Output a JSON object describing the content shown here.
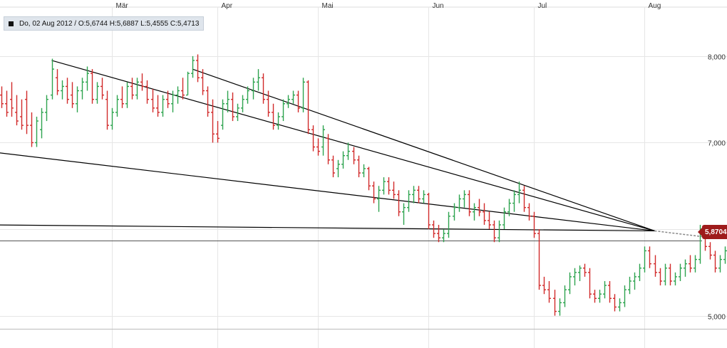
{
  "info": {
    "text": "Do, 02 Aug 2012 / O:5,6744  H:5,6887  L:5,4555  C:5,4713"
  },
  "last_price_label": "5,8704",
  "colors": {
    "up": "#2ea44f",
    "down": "#d12b2b",
    "trendline": "#000000",
    "grid": "#e6e6e6",
    "last_line": "#555555",
    "tag": "#9e1b1b",
    "info_bg": "#dfe5ec"
  },
  "chart_data": {
    "type": "ohlc-bar",
    "title": "",
    "xlabel": "",
    "ylabel": "",
    "months": [
      {
        "label": "Mär",
        "day": 22
      },
      {
        "label": "Apr",
        "day": 43
      },
      {
        "label": "Mai",
        "day": 63
      },
      {
        "label": "Jun",
        "day": 85
      },
      {
        "label": "Jul",
        "day": 106
      },
      {
        "label": "Aug",
        "day": 128
      }
    ],
    "yticks": [
      {
        "value": 8.0,
        "label": "8,000"
      },
      {
        "value": 7.0,
        "label": "7,000"
      },
      {
        "value": 6.0,
        "label": "6,000"
      },
      {
        "value": 5.0,
        "label": "5,000"
      }
    ],
    "ylim": [
      4.75,
      8.55
    ],
    "xlim": [
      0,
      135
    ],
    "last_value": 5.8704,
    "grid": true,
    "bars": [
      [
        7.55,
        7.65,
        7.4,
        7.45
      ],
      [
        7.45,
        7.6,
        7.3,
        7.35
      ],
      [
        7.5,
        7.7,
        7.3,
        7.4
      ],
      [
        7.35,
        7.55,
        7.2,
        7.25
      ],
      [
        7.3,
        7.5,
        7.15,
        7.2
      ],
      [
        7.5,
        7.6,
        7.1,
        7.2
      ],
      [
        7.2,
        7.35,
        6.95,
        7.0
      ],
      [
        7.0,
        7.3,
        6.95,
        7.25
      ],
      [
        7.15,
        7.4,
        7.05,
        7.35
      ],
      [
        7.35,
        7.55,
        7.25,
        7.5
      ],
      [
        7.55,
        7.97,
        7.5,
        7.85
      ],
      [
        7.75,
        7.85,
        7.55,
        7.6
      ],
      [
        7.6,
        7.72,
        7.5,
        7.65
      ],
      [
        7.65,
        7.75,
        7.45,
        7.5
      ],
      [
        7.55,
        7.7,
        7.4,
        7.45
      ],
      [
        7.45,
        7.65,
        7.35,
        7.6
      ],
      [
        7.6,
        7.75,
        7.5,
        7.7
      ],
      [
        7.7,
        7.88,
        7.6,
        7.8
      ],
      [
        7.8,
        7.85,
        7.45,
        7.5
      ],
      [
        7.5,
        7.7,
        7.45,
        7.65
      ],
      [
        7.65,
        7.75,
        7.5,
        7.55
      ],
      [
        7.5,
        7.6,
        7.15,
        7.2
      ],
      [
        7.2,
        7.4,
        7.15,
        7.35
      ],
      [
        7.35,
        7.55,
        7.3,
        7.5
      ],
      [
        7.5,
        7.65,
        7.4,
        7.45
      ],
      [
        7.45,
        7.7,
        7.4,
        7.65
      ],
      [
        7.65,
        7.75,
        7.5,
        7.55
      ],
      [
        7.55,
        7.75,
        7.5,
        7.7
      ],
      [
        7.7,
        7.8,
        7.6,
        7.65
      ],
      [
        7.65,
        7.72,
        7.45,
        7.5
      ],
      [
        7.5,
        7.62,
        7.35,
        7.4
      ],
      [
        7.4,
        7.55,
        7.3,
        7.35
      ],
      [
        7.35,
        7.55,
        7.3,
        7.5
      ],
      [
        7.5,
        7.6,
        7.4,
        7.45
      ],
      [
        7.45,
        7.6,
        7.35,
        7.55
      ],
      [
        7.55,
        7.65,
        7.45,
        7.6
      ],
      [
        7.6,
        7.75,
        7.5,
        7.55
      ],
      [
        7.55,
        7.82,
        7.55,
        7.8
      ],
      [
        7.8,
        8.0,
        7.75,
        7.95
      ],
      [
        7.95,
        8.02,
        7.7,
        7.75
      ],
      [
        7.75,
        7.85,
        7.55,
        7.6
      ],
      [
        7.6,
        7.65,
        7.3,
        7.35
      ],
      [
        7.35,
        7.5,
        7.0,
        7.1
      ],
      [
        7.1,
        7.25,
        7.0,
        7.05
      ],
      [
        7.2,
        7.5,
        7.15,
        7.45
      ],
      [
        7.45,
        7.6,
        7.35,
        7.5
      ],
      [
        7.5,
        7.58,
        7.25,
        7.3
      ],
      [
        7.3,
        7.45,
        7.25,
        7.4
      ],
      [
        7.4,
        7.55,
        7.35,
        7.5
      ],
      [
        7.5,
        7.65,
        7.45,
        7.6
      ],
      [
        7.6,
        7.75,
        7.5,
        7.7
      ],
      [
        7.7,
        7.85,
        7.6,
        7.75
      ],
      [
        7.75,
        7.8,
        7.45,
        7.5
      ],
      [
        7.5,
        7.6,
        7.3,
        7.35
      ],
      [
        7.35,
        7.45,
        7.15,
        7.2
      ],
      [
        7.2,
        7.35,
        7.15,
        7.3
      ],
      [
        7.3,
        7.5,
        7.25,
        7.45
      ],
      [
        7.45,
        7.55,
        7.4,
        7.5
      ],
      [
        7.5,
        7.6,
        7.45,
        7.55
      ],
      [
        7.55,
        7.6,
        7.35,
        7.4
      ],
      [
        7.4,
        7.75,
        7.35,
        7.7
      ],
      [
        7.7,
        7.72,
        7.1,
        7.15
      ],
      [
        7.15,
        7.2,
        6.9,
        6.95
      ],
      [
        6.95,
        7.05,
        6.85,
        6.9
      ],
      [
        6.95,
        7.2,
        6.85,
        7.15
      ],
      [
        7.05,
        7.1,
        6.75,
        6.8
      ],
      [
        6.8,
        6.85,
        6.6,
        6.65
      ],
      [
        6.7,
        6.8,
        6.6,
        6.75
      ],
      [
        6.75,
        6.9,
        6.7,
        6.85
      ],
      [
        6.85,
        7.0,
        6.8,
        6.9
      ],
      [
        6.9,
        6.95,
        6.75,
        6.8
      ],
      [
        6.8,
        6.85,
        6.6,
        6.65
      ],
      [
        6.65,
        6.75,
        6.6,
        6.7
      ],
      [
        6.7,
        6.72,
        6.45,
        6.5
      ],
      [
        6.5,
        6.55,
        6.3,
        6.35
      ],
      [
        6.35,
        6.5,
        6.2,
        6.45
      ],
      [
        6.45,
        6.6,
        6.4,
        6.55
      ],
      [
        6.55,
        6.6,
        6.4,
        6.45
      ],
      [
        6.45,
        6.55,
        6.35,
        6.4
      ],
      [
        6.4,
        6.45,
        6.15,
        6.2
      ],
      [
        6.2,
        6.3,
        6.05,
        6.25
      ],
      [
        6.25,
        6.45,
        6.2,
        6.4
      ],
      [
        6.4,
        6.5,
        6.3,
        6.45
      ],
      [
        6.45,
        6.5,
        6.3,
        6.35
      ],
      [
        6.35,
        6.45,
        6.3,
        6.4
      ],
      [
        6.4,
        6.42,
        6.0,
        6.05
      ],
      [
        6.05,
        6.1,
        5.9,
        5.95
      ],
      [
        5.95,
        6.05,
        5.85,
        5.9
      ],
      [
        5.9,
        6.0,
        5.85,
        5.95
      ],
      [
        5.95,
        6.2,
        5.9,
        6.15
      ],
      [
        6.15,
        6.3,
        6.1,
        6.25
      ],
      [
        6.25,
        6.4,
        6.2,
        6.35
      ],
      [
        6.35,
        6.45,
        6.25,
        6.4
      ],
      [
        6.4,
        6.45,
        6.15,
        6.2
      ],
      [
        6.2,
        6.3,
        6.1,
        6.25
      ],
      [
        6.25,
        6.35,
        6.15,
        6.2
      ],
      [
        6.2,
        6.3,
        6.05,
        6.1
      ],
      [
        6.1,
        6.2,
        6.0,
        6.05
      ],
      [
        6.05,
        6.1,
        5.85,
        5.9
      ],
      [
        5.9,
        6.1,
        5.85,
        6.05
      ],
      [
        6.05,
        6.25,
        6.0,
        6.2
      ],
      [
        6.2,
        6.35,
        6.15,
        6.3
      ],
      [
        6.3,
        6.45,
        6.2,
        6.4
      ],
      [
        6.4,
        6.55,
        6.3,
        6.45
      ],
      [
        6.45,
        6.5,
        6.2,
        6.25
      ],
      [
        6.25,
        6.3,
        6.1,
        6.15
      ],
      [
        6.15,
        6.2,
        5.9,
        5.95
      ],
      [
        5.95,
        6.0,
        5.3,
        5.35
      ],
      [
        5.35,
        5.45,
        5.25,
        5.3
      ],
      [
        5.3,
        5.4,
        5.15,
        5.2
      ],
      [
        5.2,
        5.3,
        5.0,
        5.05
      ],
      [
        5.05,
        5.2,
        5.0,
        5.15
      ],
      [
        5.15,
        5.35,
        5.1,
        5.3
      ],
      [
        5.3,
        5.5,
        5.25,
        5.45
      ],
      [
        5.45,
        5.55,
        5.35,
        5.5
      ],
      [
        5.5,
        5.58,
        5.4,
        5.55
      ],
      [
        5.55,
        5.6,
        5.45,
        5.5
      ],
      [
        5.5,
        5.55,
        5.2,
        5.25
      ],
      [
        5.25,
        5.3,
        5.15,
        5.2
      ],
      [
        5.2,
        5.3,
        5.15,
        5.25
      ],
      [
        5.25,
        5.4,
        5.2,
        5.35
      ],
      [
        5.35,
        5.4,
        5.15,
        5.2
      ],
      [
        5.2,
        5.25,
        5.05,
        5.1
      ],
      [
        5.1,
        5.2,
        5.05,
        5.15
      ],
      [
        5.15,
        5.35,
        5.1,
        5.3
      ],
      [
        5.3,
        5.45,
        5.25,
        5.4
      ],
      [
        5.4,
        5.5,
        5.3,
        5.45
      ],
      [
        5.45,
        5.6,
        5.4,
        5.55
      ],
      [
        5.55,
        5.8,
        5.5,
        5.75
      ],
      [
        5.75,
        5.8,
        5.55,
        5.6
      ],
      [
        5.6,
        5.7,
        5.45,
        5.5
      ],
      [
        5.5,
        5.55,
        5.35,
        5.4
      ],
      [
        5.4,
        5.6,
        5.35,
        5.55
      ],
      [
        5.55,
        5.6,
        5.35,
        5.4
      ],
      [
        5.4,
        5.5,
        5.35,
        5.45
      ],
      [
        5.45,
        5.6,
        5.4,
        5.55
      ],
      [
        5.55,
        5.65,
        5.45,
        5.6
      ],
      [
        5.6,
        5.7,
        5.5,
        5.55
      ],
      [
        5.55,
        5.7,
        5.5,
        5.65
      ],
      [
        5.65,
        6.05,
        5.6,
        6.0
      ],
      [
        6.0,
        6.05,
        5.75,
        5.8
      ],
      [
        5.8,
        5.85,
        5.65,
        5.7
      ],
      [
        5.7,
        5.75,
        5.5,
        5.55
      ],
      [
        5.55,
        5.7,
        5.5,
        5.65
      ],
      [
        5.65,
        5.8,
        5.6,
        5.75
      ],
      [
        5.75,
        5.85,
        5.7,
        5.8
      ],
      [
        5.8,
        5.9,
        5.75,
        5.85
      ],
      [
        5.75,
        5.85,
        5.7,
        5.8
      ],
      [
        5.8,
        5.95,
        5.75,
        5.9
      ],
      [
        5.9,
        5.95,
        5.85,
        5.87
      ]
    ],
    "trendlines": [
      {
        "from": [
          -3,
          6.05
        ],
        "to": [
          130,
          5.98
        ]
      },
      {
        "from": [
          -3,
          6.9
        ],
        "to": [
          130,
          5.98
        ]
      },
      {
        "from": [
          10,
          7.95
        ],
        "to": [
          130,
          5.98
        ]
      },
      {
        "from": [
          38,
          7.85
        ],
        "to": [
          130,
          5.98
        ]
      }
    ]
  }
}
